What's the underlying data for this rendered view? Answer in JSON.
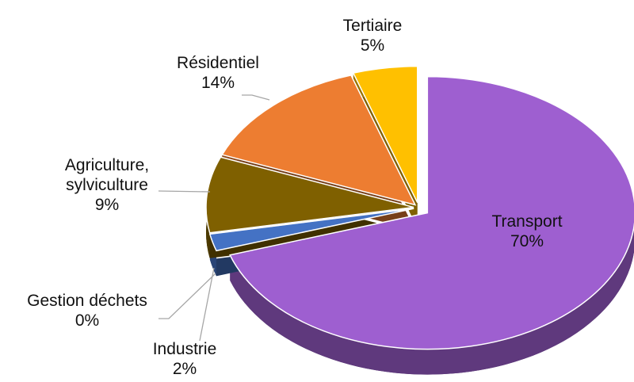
{
  "chart_data": {
    "type": "pie",
    "categories": [
      "Transport",
      "Industrie",
      "Gestion déchets",
      "Agriculture, sylviculture",
      "Résidentiel",
      "Tertiaire"
    ],
    "values": [
      70,
      2,
      0,
      9,
      14,
      5
    ],
    "value_labels": [
      "70%",
      "2%",
      "0%",
      "9%",
      "14%",
      "5%"
    ],
    "colors": [
      "#9e5fd0",
      "#4472c4",
      "#264478",
      "#7f6000",
      "#ed7d31",
      "#ffc000"
    ]
  }
}
